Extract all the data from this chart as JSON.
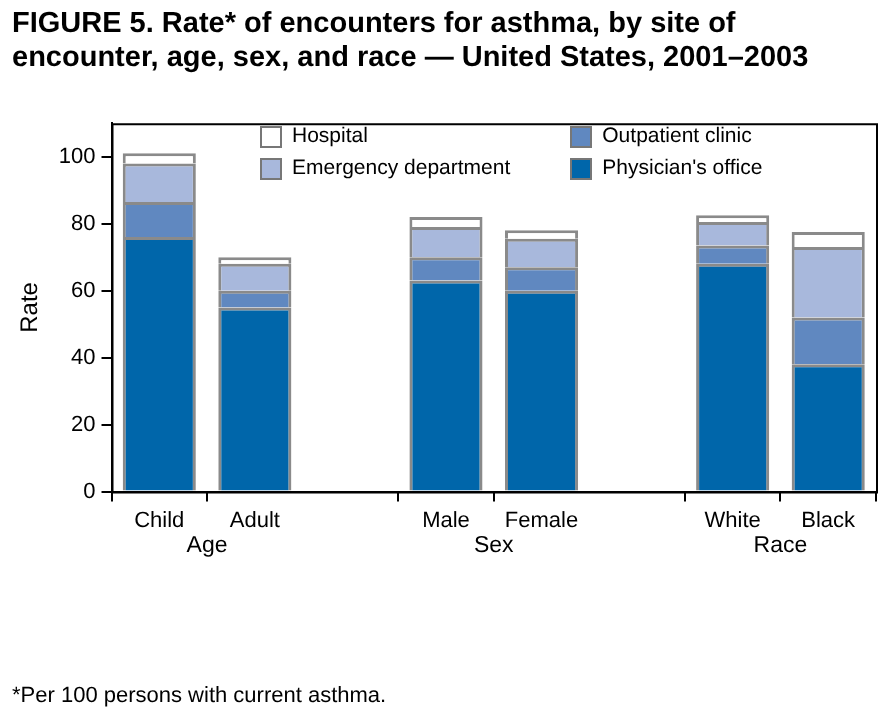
{
  "chart_data": {
    "type": "bar",
    "stacked": true,
    "title": "FIGURE 5. Rate* of encounters for asthma, by site of encounter, age, sex, and race — United States, 2001–2003",
    "ylabel": "Rate",
    "categories": [
      "Child",
      "Adult",
      null,
      "Male",
      "Female",
      null,
      "White",
      "Black"
    ],
    "series": [
      {
        "name": "Physician's office",
        "color": "#0066aa",
        "values": [
          76,
          55,
          null,
          63,
          60,
          null,
          68,
          38
        ]
      },
      {
        "name": "Outpatient clinic",
        "color": "#6088c0",
        "values": [
          10.5,
          5,
          null,
          7,
          7,
          null,
          5.5,
          14
        ]
      },
      {
        "name": "Emergency department",
        "color": "#a8b8dc",
        "values": [
          11.5,
          8,
          null,
          9,
          8.5,
          null,
          7,
          21
        ]
      },
      {
        "name": "Hospital",
        "color": "#ffffff",
        "values": [
          3,
          2,
          null,
          3,
          2.5,
          null,
          2,
          4.5
        ]
      }
    ],
    "ylim": [
      0,
      110
    ],
    "yticks": [
      0,
      20,
      40,
      60,
      80,
      100
    ],
    "grid": false,
    "legend": "top",
    "annotations": [
      "Age",
      "Sex",
      "Race",
      "*Per 100 persons with current asthma."
    ]
  }
}
